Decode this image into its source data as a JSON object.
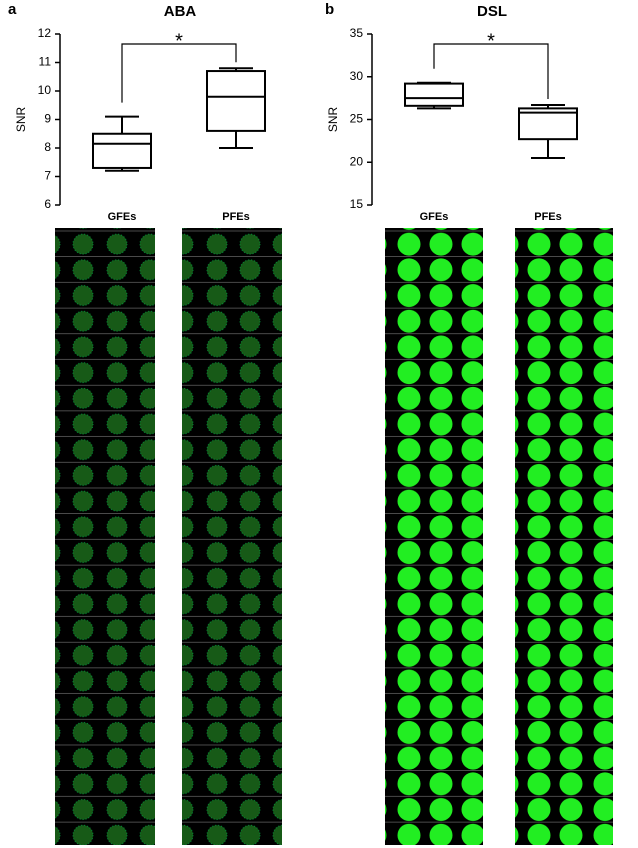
{
  "chart_data": [
    {
      "type": "box",
      "panel": "a",
      "title": "ABA",
      "y_label": "SNR",
      "annotation": "*",
      "categories": [
        "GFEs",
        "PFEs"
      ],
      "values": [
        {
          "min": 7.2,
          "q1": 7.3,
          "median": 8.15,
          "q3": 8.5,
          "max": 9.1
        },
        {
          "min": 8.0,
          "q1": 8.6,
          "median": 9.8,
          "q3": 10.7,
          "max": 10.8
        }
      ],
      "color": "#000000",
      "ylim": [
        6,
        12
      ],
      "yticks": [
        6,
        7,
        8,
        9,
        10,
        11,
        12
      ]
    },
    {
      "type": "box",
      "panel": "b",
      "title": "DSL",
      "y_label": "SNR",
      "annotation": "*",
      "categories": [
        "GFEs",
        "PFEs"
      ],
      "values": [
        {
          "min": 26.3,
          "q1": 26.6,
          "median": 27.5,
          "q3": 29.2,
          "max": 29.3
        },
        {
          "min": 20.5,
          "q1": 22.7,
          "median": 25.8,
          "q3": 26.3,
          "max": 26.7
        }
      ],
      "color": "#000000",
      "ylim": [
        15,
        35
      ],
      "yticks": [
        15,
        20,
        25,
        30,
        35
      ]
    }
  ]
}
